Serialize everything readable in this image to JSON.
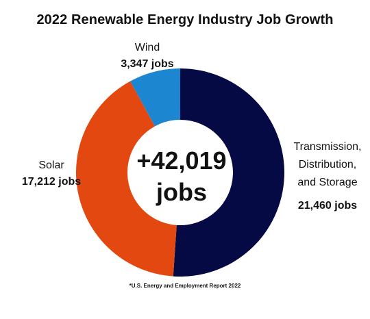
{
  "chart_data": {
    "type": "pie",
    "title": "2022 Renewable Energy Industry Job Growth",
    "center_value": "+42,019",
    "center_unit": "jobs",
    "source": "*U.S. Energy and Employment Report 2022",
    "slices": [
      {
        "name_lines": [
          "Transmission,",
          "Distribution,",
          "and Storage"
        ],
        "value": 21460,
        "value_label": "21,460 jobs",
        "color": "#050a45"
      },
      {
        "name_lines": [
          "Solar"
        ],
        "value": 17212,
        "value_label": "17,212 jobs",
        "color": "#e2480f"
      },
      {
        "name_lines": [
          "Wind"
        ],
        "value": 3347,
        "value_label": "3,347 jobs",
        "color": "#1c86d1"
      }
    ]
  }
}
